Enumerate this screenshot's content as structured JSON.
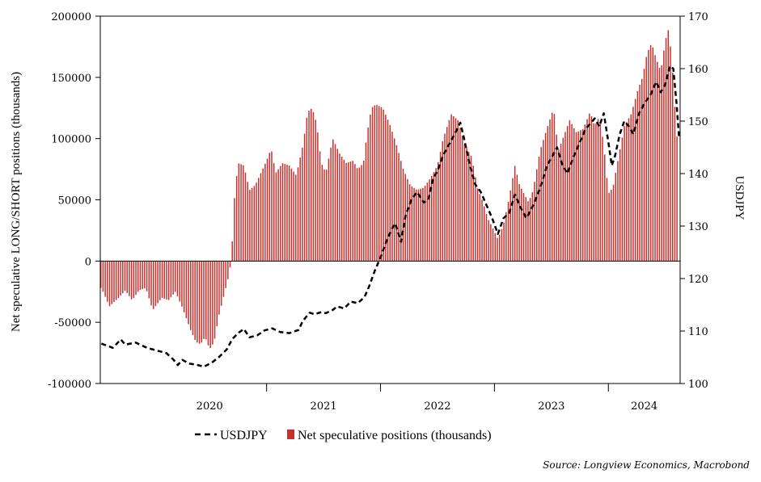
{
  "chart_data": {
    "type": "bar+line",
    "xlabel": "",
    "x_tick_labels": [
      "2020",
      "2021",
      "2022",
      "2023",
      "2024"
    ],
    "x_range": [
      2019.54,
      2024.63
    ],
    "year_boundaries": [
      2021,
      2022,
      2023,
      2024
    ],
    "left_axis": {
      "label": "Net speculative LONG/SHORT positions (thousands)",
      "ylim": [
        -100000,
        200000
      ],
      "ticks": [
        -100000,
        -50000,
        0,
        50000,
        100000,
        150000,
        200000
      ],
      "tick_labels": [
        "-100000",
        "-50000",
        "0",
        "50000",
        "100000",
        "150000",
        "200000"
      ]
    },
    "right_axis": {
      "label": "USDJPY",
      "ylim": [
        100,
        170
      ],
      "ticks": [
        100,
        110,
        120,
        130,
        140,
        150,
        160,
        170
      ],
      "tick_labels": [
        "100",
        "110",
        "120",
        "130",
        "140",
        "150",
        "160",
        "170"
      ]
    },
    "series": [
      {
        "name": "USDJPY",
        "type": "line",
        "axis": "right",
        "color": "#000000",
        "style": "dashed",
        "points": [
          [
            2019.55,
            107.6
          ],
          [
            2019.65,
            106.8
          ],
          [
            2019.72,
            108.4
          ],
          [
            2019.76,
            107.4
          ],
          [
            2019.85,
            107.8
          ],
          [
            2019.95,
            106.8
          ],
          [
            2020.05,
            106.2
          ],
          [
            2020.12,
            105.8
          ],
          [
            2020.18,
            104.6
          ],
          [
            2020.22,
            103.5
          ],
          [
            2020.26,
            104.5
          ],
          [
            2020.32,
            103.8
          ],
          [
            2020.38,
            103.6
          ],
          [
            2020.45,
            103.2
          ],
          [
            2020.52,
            104.0
          ],
          [
            2020.58,
            105.0
          ],
          [
            2020.65,
            106.5
          ],
          [
            2020.7,
            108.5
          ],
          [
            2020.75,
            109.6
          ],
          [
            2020.8,
            110.4
          ],
          [
            2020.85,
            108.8
          ],
          [
            2020.92,
            109.2
          ],
          [
            2020.98,
            110.1
          ],
          [
            2021.05,
            110.5
          ],
          [
            2021.12,
            109.8
          ],
          [
            2021.2,
            109.6
          ],
          [
            2021.28,
            110.2
          ],
          [
            2021.32,
            112.0
          ],
          [
            2021.38,
            113.5
          ],
          [
            2021.42,
            113.2
          ],
          [
            2021.48,
            113.6
          ],
          [
            2021.52,
            113.4
          ],
          [
            2021.58,
            114.0
          ],
          [
            2021.62,
            114.7
          ],
          [
            2021.68,
            114.3
          ],
          [
            2021.74,
            115.6
          ],
          [
            2021.8,
            115.3
          ],
          [
            2021.86,
            116.5
          ],
          [
            2021.9,
            118.5
          ],
          [
            2021.95,
            121.5
          ],
          [
            2022.0,
            124.0
          ],
          [
            2022.05,
            127.0
          ],
          [
            2022.1,
            129.5
          ],
          [
            2022.13,
            130.5
          ],
          [
            2022.18,
            127.0
          ],
          [
            2022.22,
            132.0
          ],
          [
            2022.27,
            135.0
          ],
          [
            2022.32,
            136.5
          ],
          [
            2022.38,
            134.5
          ],
          [
            2022.42,
            135.0
          ],
          [
            2022.46,
            139.0
          ],
          [
            2022.5,
            140.5
          ],
          [
            2022.55,
            143.5
          ],
          [
            2022.6,
            145.5
          ],
          [
            2022.65,
            147.5
          ],
          [
            2022.7,
            149.7
          ],
          [
            2022.73,
            147.0
          ],
          [
            2022.78,
            142.0
          ],
          [
            2022.83,
            138.0
          ],
          [
            2022.88,
            136.5
          ],
          [
            2022.93,
            134.0
          ],
          [
            2022.98,
            131.5
          ],
          [
            2023.03,
            128.5
          ],
          [
            2023.08,
            131.5
          ],
          [
            2023.13,
            132.5
          ],
          [
            2023.18,
            136.0
          ],
          [
            2023.23,
            133.5
          ],
          [
            2023.28,
            131.5
          ],
          [
            2023.33,
            133.5
          ],
          [
            2023.38,
            136.0
          ],
          [
            2023.42,
            138.5
          ],
          [
            2023.46,
            141.5
          ],
          [
            2023.5,
            143.0
          ],
          [
            2023.55,
            145.0
          ],
          [
            2023.59,
            142.0
          ],
          [
            2023.64,
            140.0
          ],
          [
            2023.7,
            143.5
          ],
          [
            2023.76,
            146.5
          ],
          [
            2023.8,
            148.5
          ],
          [
            2023.84,
            149.5
          ],
          [
            2023.88,
            150.5
          ],
          [
            2023.92,
            149.0
          ],
          [
            2023.96,
            151.5
          ],
          [
            2024.0,
            146.0
          ],
          [
            2024.03,
            141.5
          ],
          [
            2024.06,
            143.5
          ],
          [
            2024.1,
            147.5
          ],
          [
            2024.14,
            150.0
          ],
          [
            2024.18,
            149.0
          ],
          [
            2024.22,
            147.5
          ],
          [
            2024.27,
            151.5
          ],
          [
            2024.32,
            153.5
          ],
          [
            2024.37,
            155.0
          ],
          [
            2024.42,
            157.5
          ],
          [
            2024.46,
            155.5
          ],
          [
            2024.5,
            157.0
          ],
          [
            2024.54,
            160.5
          ],
          [
            2024.57,
            160.0
          ],
          [
            2024.6,
            153.0
          ],
          [
            2024.62,
            147.0
          ]
        ]
      },
      {
        "name": "Net speculative positions (thousands)",
        "type": "bar",
        "axis": "left",
        "color": "#c9302c",
        "weekly": true,
        "start": 2019.545,
        "step": 0.01923,
        "keyframes": [
          [
            2019.55,
            -22000
          ],
          [
            2019.62,
            -37000
          ],
          [
            2019.7,
            -30000
          ],
          [
            2019.76,
            -24000
          ],
          [
            2019.82,
            -32000
          ],
          [
            2019.88,
            -24000
          ],
          [
            2019.94,
            -22000
          ],
          [
            2020.0,
            -40000
          ],
          [
            2020.08,
            -30000
          ],
          [
            2020.14,
            -32000
          ],
          [
            2020.2,
            -25000
          ],
          [
            2020.26,
            -38000
          ],
          [
            2020.3,
            -48000
          ],
          [
            2020.34,
            -58000
          ],
          [
            2020.38,
            -66000
          ],
          [
            2020.42,
            -68000
          ],
          [
            2020.46,
            -62000
          ],
          [
            2020.5,
            -72000
          ],
          [
            2020.54,
            -66000
          ],
          [
            2020.58,
            -45000
          ],
          [
            2020.62,
            -30000
          ],
          [
            2020.66,
            -15000
          ],
          [
            2020.69,
            0
          ],
          [
            2020.72,
            55000
          ],
          [
            2020.75,
            80000
          ],
          [
            2020.8,
            78000
          ],
          [
            2020.85,
            58000
          ],
          [
            2020.9,
            62000
          ],
          [
            2020.95,
            72000
          ],
          [
            2021.0,
            82000
          ],
          [
            2021.04,
            92000
          ],
          [
            2021.08,
            72000
          ],
          [
            2021.14,
            80000
          ],
          [
            2021.2,
            78000
          ],
          [
            2021.26,
            70000
          ],
          [
            2021.32,
            95000
          ],
          [
            2021.36,
            122000
          ],
          [
            2021.4,
            125000
          ],
          [
            2021.44,
            112000
          ],
          [
            2021.48,
            80000
          ],
          [
            2021.52,
            72000
          ],
          [
            2021.58,
            100000
          ],
          [
            2021.64,
            88000
          ],
          [
            2021.7,
            80000
          ],
          [
            2021.76,
            82000
          ],
          [
            2021.8,
            75000
          ],
          [
            2021.85,
            80000
          ],
          [
            2021.88,
            103000
          ],
          [
            2021.92,
            125000
          ],
          [
            2021.96,
            128000
          ],
          [
            2022.02,
            125000
          ],
          [
            2022.08,
            112000
          ],
          [
            2022.14,
            95000
          ],
          [
            2022.2,
            75000
          ],
          [
            2022.26,
            62000
          ],
          [
            2022.32,
            58000
          ],
          [
            2022.38,
            60000
          ],
          [
            2022.44,
            68000
          ],
          [
            2022.5,
            78000
          ],
          [
            2022.55,
            100000
          ],
          [
            2022.62,
            120000
          ],
          [
            2022.68,
            115000
          ],
          [
            2022.74,
            95000
          ],
          [
            2022.8,
            85000
          ],
          [
            2022.85,
            60000
          ],
          [
            2022.9,
            48000
          ],
          [
            2022.94,
            35000
          ],
          [
            2022.98,
            28000
          ],
          [
            2023.03,
            18000
          ],
          [
            2023.08,
            30000
          ],
          [
            2023.13,
            52000
          ],
          [
            2023.18,
            78000
          ],
          [
            2023.22,
            62000
          ],
          [
            2023.26,
            55000
          ],
          [
            2023.3,
            48000
          ],
          [
            2023.34,
            58000
          ],
          [
            2023.4,
            90000
          ],
          [
            2023.46,
            108000
          ],
          [
            2023.52,
            125000
          ],
          [
            2023.56,
            90000
          ],
          [
            2023.6,
            100000
          ],
          [
            2023.66,
            115000
          ],
          [
            2023.72,
            105000
          ],
          [
            2023.78,
            108000
          ],
          [
            2023.84,
            122000
          ],
          [
            2023.88,
            110000
          ],
          [
            2023.92,
            118000
          ],
          [
            2023.96,
            95000
          ],
          [
            2024.0,
            55000
          ],
          [
            2024.04,
            60000
          ],
          [
            2024.08,
            80000
          ],
          [
            2024.14,
            110000
          ],
          [
            2024.2,
            120000
          ],
          [
            2024.26,
            140000
          ],
          [
            2024.3,
            150000
          ],
          [
            2024.34,
            170000
          ],
          [
            2024.38,
            178000
          ],
          [
            2024.42,
            165000
          ],
          [
            2024.46,
            155000
          ],
          [
            2024.5,
            180000
          ],
          [
            2024.53,
            190000
          ],
          [
            2024.56,
            160000
          ],
          [
            2024.58,
            130000
          ],
          [
            2024.6,
            105000
          ],
          [
            2024.62,
            78000
          ]
        ]
      }
    ],
    "legend": {
      "placement": "bottom-center"
    },
    "grid": false
  },
  "legend_labels": {
    "line": "USDJPY",
    "bars": "Net speculative positions (thousands)"
  },
  "source": "Source: Longview Economics, Macrobond"
}
